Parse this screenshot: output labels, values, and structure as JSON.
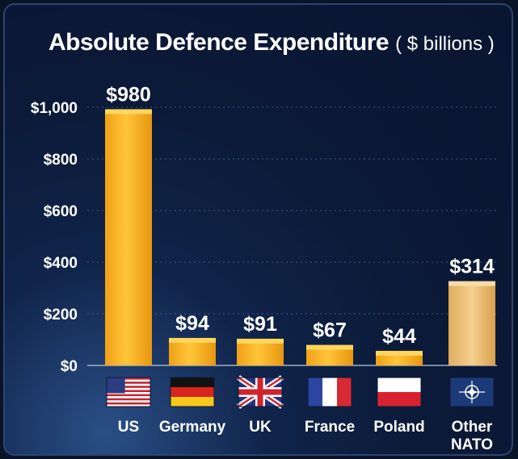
{
  "chart_data": {
    "type": "bar",
    "title": "Absolute Defence Expenditure",
    "subtitle": "( $ billions )",
    "categories": [
      "US",
      "Germany",
      "UK",
      "France",
      "Poland",
      "Other NATO"
    ],
    "values": [
      980,
      94,
      91,
      67,
      44,
      314
    ],
    "value_labels": [
      "$980",
      "$94",
      "$91",
      "$67",
      "$44",
      "$314"
    ],
    "ylim": [
      0,
      1000
    ],
    "yticks": [
      0,
      200,
      400,
      600,
      800,
      1000
    ],
    "ytick_labels": [
      "$0",
      "$200",
      "$400",
      "$600",
      "$800",
      "$1,000"
    ],
    "grid": true,
    "xlabel": "",
    "ylabel": "",
    "flags": [
      "us-flag-icon",
      "germany-flag-icon",
      "uk-flag-icon",
      "france-flag-icon",
      "poland-flag-icon",
      "nato-flag-icon"
    ],
    "colors": {
      "bar": "#f2a81d",
      "bar_highlight": "#ffd24a",
      "last_bar": "#e8b86a",
      "text": "#ffffff",
      "background": "#0b1a38"
    }
  }
}
